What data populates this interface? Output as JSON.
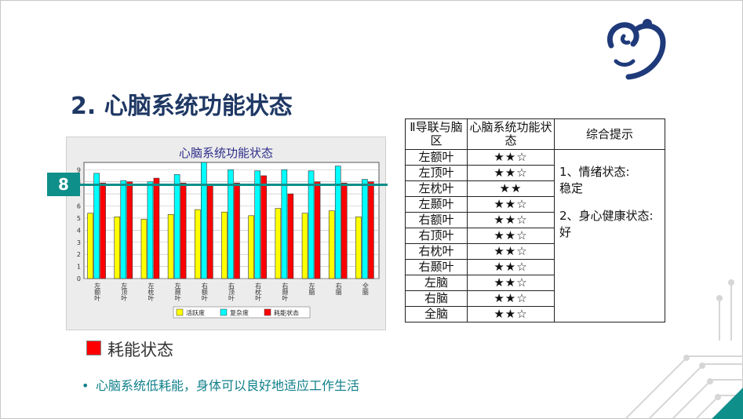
{
  "slide": {
    "title": "2. 心脑系统功能状态",
    "marker_value": "8",
    "legend_label": "耗能状态",
    "bullet_text": "心脑系统低耗能，身体可以良好地适应工作生活"
  },
  "table": {
    "headers": [
      "Ⅱ导联与脑区",
      "心脑系统功能状态",
      "综合提示"
    ],
    "rows": [
      {
        "region": "左额叶",
        "stars": "★★☆"
      },
      {
        "region": "左顶叶",
        "stars": "★★☆"
      },
      {
        "region": "左枕叶",
        "stars": "★★"
      },
      {
        "region": "左颞叶",
        "stars": "★★☆"
      },
      {
        "region": "右额叶",
        "stars": "★★☆"
      },
      {
        "region": "右顶叶",
        "stars": "★★☆"
      },
      {
        "region": "右枕叶",
        "stars": "★★☆"
      },
      {
        "region": "右颞叶",
        "stars": "★★☆"
      },
      {
        "region": "左脑",
        "stars": "★★☆"
      },
      {
        "region": "右脑",
        "stars": "★★☆"
      },
      {
        "region": "全脑",
        "stars": "★★☆"
      }
    ],
    "tip_lines": [
      "1、情绪状态:",
      "稳定",
      "",
      "2、身心健康状态:",
      "好"
    ]
  },
  "colors": {
    "series_yellow": "#ffff00",
    "series_cyan": "#00ffff",
    "series_red": "#ff0000",
    "accent_teal": "#0e8f8a",
    "title_navy": "#1f3864"
  },
  "chart_data": {
    "type": "bar",
    "title": "心脑系统功能状态",
    "categories": [
      "左额叶",
      "左顶叶",
      "左枕叶",
      "左颞叶",
      "右额叶",
      "右顶叶",
      "右枕叶",
      "右颞叶",
      "左脑",
      "右脑",
      "全脑"
    ],
    "series": [
      {
        "name": "活跃度",
        "color": "#ffff00",
        "values": [
          5.4,
          5.1,
          4.9,
          5.3,
          5.7,
          5.5,
          5.2,
          5.8,
          5.4,
          5.6,
          5.1
        ]
      },
      {
        "name": "复杂度",
        "color": "#00ffff",
        "values": [
          8.7,
          8.1,
          8.0,
          8.6,
          9.6,
          9.0,
          8.9,
          9.0,
          8.9,
          9.3,
          8.2
        ]
      },
      {
        "name": "耗能状态",
        "color": "#ff0000",
        "values": [
          7.9,
          8.0,
          8.3,
          7.9,
          7.8,
          7.9,
          8.5,
          7.0,
          8.0,
          7.9,
          8.0
        ]
      }
    ],
    "yticks": [
      "0",
      "1",
      "2",
      "3",
      "4",
      "5",
      "6",
      "7",
      "8",
      "9"
    ],
    "ylim": [
      0,
      9.6
    ],
    "grid": true,
    "legend_position": "bottom"
  }
}
